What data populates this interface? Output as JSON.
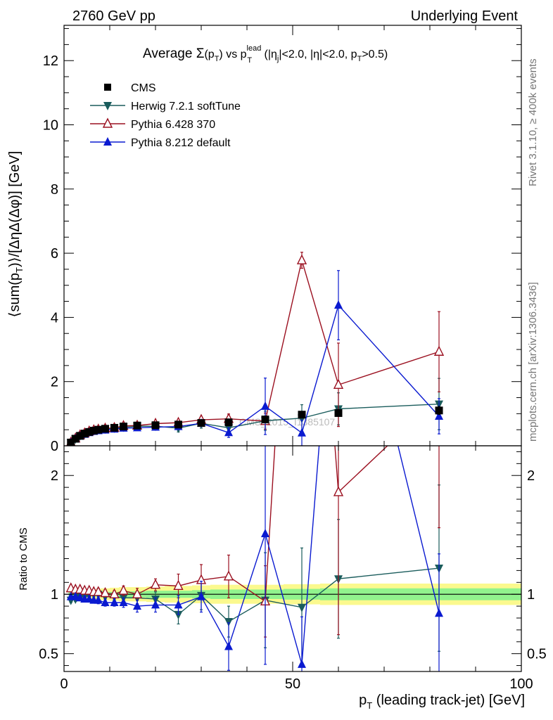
{
  "header": {
    "left": "2760 GeV pp",
    "right": "Underlying Event"
  },
  "side": {
    "rivet": "Rivet 3.1.10, ≥ 400k events",
    "mcplots": "mcplots.cern.ch [arXiv:1306.3436]"
  },
  "watermark": "CMS_2015_I1385107",
  "chart_data": {
    "type": "scatter",
    "title": {
      "prefix": "Average ",
      "sigma": "Σ",
      "paren_open": "(p",
      "paren_sub": "T",
      "paren_close": ")",
      "vs": " vs p",
      "sup": "lead",
      "sub": "T",
      "cuts_a": " (|η",
      "cuts_a_sub": "j",
      "cuts_b": "|<2.0, |η|<2.0, p",
      "cuts_b_sub": "T",
      "cuts_c": ">0.5)"
    },
    "ylabel_main": {
      "a": "⟨sum(p",
      "a_sub": "T",
      "b": ")⟩/[ΔηΔ(Δφ)] [GeV]"
    },
    "ylabel_ratio": "Ratio to CMS",
    "xlabel": {
      "a": "p",
      "a_sub": "T",
      "b": " (leading track-jet) [GeV]"
    },
    "xlim": [
      0,
      100
    ],
    "ylim_main": [
      0,
      13.1
    ],
    "ylim_ratio": [
      0.35,
      2.25
    ],
    "x_ticks": [
      "0",
      "50",
      "100"
    ],
    "x_tick_values": [
      0,
      50,
      100
    ],
    "y_ticks_main": [
      "0",
      "2",
      "4",
      "6",
      "8",
      "10",
      "12"
    ],
    "y_tick_values_main": [
      0,
      2,
      4,
      6,
      8,
      10,
      12
    ],
    "y_ticks_ratio": [
      "0.5",
      "1",
      "2"
    ],
    "y_tick_values_ratio": [
      0.5,
      1,
      2
    ],
    "legend": [
      {
        "name": "CMS",
        "color": "#000000",
        "marker": "square"
      },
      {
        "name": "Herwig 7.2.1 softTune",
        "color": "#1a5c5c",
        "marker": "triangle-down"
      },
      {
        "name": "Pythia 6.428 370",
        "color": "#9b1020",
        "marker": "triangle-open"
      },
      {
        "name": "Pythia 8.212 default",
        "color": "#0a1ad0",
        "marker": "triangle-up"
      }
    ],
    "data": {
      "x": [
        1.5,
        2.5,
        3.5,
        4.5,
        5.5,
        6.5,
        7.5,
        9,
        11,
        13,
        16,
        20,
        25,
        30,
        36,
        44,
        52,
        60,
        82
      ],
      "y": [
        0.1,
        0.22,
        0.31,
        0.38,
        0.43,
        0.47,
        0.5,
        0.53,
        0.56,
        0.6,
        0.63,
        0.64,
        0.66,
        0.71,
        0.73,
        0.82,
        0.97,
        1.02,
        1.1
      ],
      "err": [
        0.005,
        0.005,
        0.005,
        0.005,
        0.005,
        0.005,
        0.01,
        0.01,
        0.01,
        0.01,
        0.01,
        0.01,
        0.02,
        0.02,
        0.03,
        0.05,
        0.08,
        0.1,
        0.12
      ]
    },
    "series": [
      {
        "name": "Herwig 7.2.1 softTune",
        "color": "#1a5c5c",
        "marker": "triangle-down",
        "x": [
          1.5,
          2.5,
          3.5,
          4.5,
          5.5,
          6.5,
          7.5,
          9,
          11,
          13,
          16,
          20,
          25,
          30,
          36,
          44,
          52,
          60,
          82
        ],
        "y": [
          0.095,
          0.21,
          0.31,
          0.37,
          0.43,
          0.47,
          0.5,
          0.52,
          0.55,
          0.58,
          0.61,
          0.61,
          0.55,
          0.7,
          0.56,
          0.78,
          0.86,
          1.15,
          1.3
        ],
        "err_lo": [
          0.01,
          0.01,
          0.01,
          0.01,
          0.01,
          0.01,
          0.02,
          0.02,
          0.02,
          0.03,
          0.04,
          0.05,
          0.12,
          0.15,
          0.2,
          0.3,
          0.42,
          0.5,
          0.8
        ],
        "err_hi": [
          0.01,
          0.01,
          0.01,
          0.01,
          0.01,
          0.01,
          0.02,
          0.02,
          0.02,
          0.03,
          0.04,
          0.05,
          0.12,
          0.15,
          0.2,
          0.3,
          0.42,
          0.5,
          0.8
        ]
      },
      {
        "name": "Pythia 6.428 370",
        "color": "#9b1020",
        "marker": "triangle-open",
        "x": [
          1.5,
          2.5,
          3.5,
          4.5,
          5.5,
          6.5,
          7.5,
          9,
          11,
          13,
          16,
          20,
          25,
          30,
          36,
          44,
          52,
          60,
          82
        ],
        "y": [
          0.105,
          0.23,
          0.33,
          0.39,
          0.45,
          0.49,
          0.51,
          0.54,
          0.56,
          0.62,
          0.63,
          0.69,
          0.72,
          0.81,
          0.84,
          0.77,
          5.78,
          1.9,
          2.93
        ],
        "err_lo": [
          0.01,
          0.01,
          0.01,
          0.01,
          0.01,
          0.01,
          0.02,
          0.02,
          0.02,
          0.03,
          0.04,
          0.05,
          0.08,
          0.1,
          0.15,
          0.25,
          0.25,
          1.3,
          1.25
        ],
        "err_hi": [
          0.01,
          0.01,
          0.01,
          0.01,
          0.01,
          0.01,
          0.02,
          0.02,
          0.02,
          0.03,
          0.04,
          0.05,
          0.08,
          0.1,
          0.15,
          0.25,
          0.25,
          1.3,
          1.25
        ]
      },
      {
        "name": "Pythia 8.212 default",
        "color": "#0a1ad0",
        "marker": "triangle-up",
        "x": [
          1.5,
          2.5,
          3.5,
          4.5,
          5.5,
          6.5,
          7.5,
          9,
          11,
          13,
          16,
          20,
          25,
          30,
          36,
          44,
          52,
          60,
          82
        ],
        "y": [
          0.095,
          0.215,
          0.3,
          0.36,
          0.41,
          0.45,
          0.47,
          0.49,
          0.52,
          0.55,
          0.56,
          0.58,
          0.6,
          0.7,
          0.41,
          1.23,
          0.4,
          4.38,
          0.92
        ],
        "err_lo": [
          0.01,
          0.01,
          0.01,
          0.01,
          0.01,
          0.01,
          0.02,
          0.02,
          0.02,
          0.03,
          0.04,
          0.05,
          0.08,
          0.1,
          0.15,
          0.88,
          0.4,
          1.08,
          0.55
        ],
        "err_hi": [
          0.01,
          0.01,
          0.01,
          0.01,
          0.01,
          0.01,
          0.02,
          0.02,
          0.02,
          0.03,
          0.04,
          0.05,
          0.08,
          0.1,
          0.15,
          0.88,
          0.4,
          1.08,
          0.55
        ]
      }
    ],
    "ratio_band": {
      "x_lo": [
        1,
        2,
        3,
        4,
        5,
        6,
        7,
        8,
        10,
        12,
        14,
        18,
        22,
        28,
        32,
        40,
        48,
        56,
        64
      ],
      "x_hi": [
        2,
        3,
        4,
        5,
        6,
        7,
        8,
        10,
        12,
        14,
        18,
        22,
        28,
        32,
        40,
        48,
        56,
        64,
        100
      ],
      "inner": [
        0.015,
        0.015,
        0.015,
        0.015,
        0.015,
        0.015,
        0.02,
        0.02,
        0.02,
        0.025,
        0.025,
        0.03,
        0.03,
        0.035,
        0.04,
        0.04,
        0.045,
        0.05,
        0.05
      ],
      "outer": [
        0.02,
        0.02,
        0.025,
        0.03,
        0.035,
        0.04,
        0.045,
        0.05,
        0.055,
        0.06,
        0.06,
        0.065,
        0.07,
        0.075,
        0.08,
        0.08,
        0.085,
        0.09,
        0.09
      ]
    },
    "ratio_series": [
      {
        "name": "Herwig 7.2.1 softTune",
        "y": [
          0.95,
          0.96,
          0.98,
          0.98,
          0.99,
          1.0,
          1.0,
          0.98,
          0.98,
          0.97,
          0.97,
          0.96,
          0.83,
          0.99,
          0.77,
          0.95,
          0.89,
          1.13,
          1.22
        ],
        "err_lo": [
          0.02,
          0.02,
          0.02,
          0.02,
          0.02,
          0.02,
          0.03,
          0.03,
          0.03,
          0.04,
          0.05,
          0.06,
          0.08,
          0.12,
          0.13,
          0.4,
          0.5,
          0.5,
          0.7
        ],
        "err_hi": [
          0.02,
          0.02,
          0.02,
          0.02,
          0.02,
          0.02,
          0.03,
          0.03,
          0.03,
          0.04,
          0.05,
          0.06,
          0.08,
          0.12,
          0.13,
          0.4,
          0.5,
          0.5,
          0.7
        ]
      },
      {
        "name": "Pythia 6.428 370",
        "y": [
          1.05,
          1.04,
          1.04,
          1.03,
          1.03,
          1.02,
          1.02,
          1.01,
          1.0,
          1.03,
          1.0,
          1.08,
          1.07,
          1.12,
          1.15,
          0.94,
          5.9,
          1.86,
          2.66
        ],
        "err_lo": [
          0.02,
          0.02,
          0.02,
          0.02,
          0.02,
          0.02,
          0.03,
          0.03,
          0.03,
          0.04,
          0.05,
          0.05,
          0.1,
          0.13,
          0.18,
          0.3,
          0.4,
          1.2,
          1.1
        ],
        "err_hi": [
          0.02,
          0.02,
          0.02,
          0.02,
          0.02,
          0.02,
          0.03,
          0.03,
          0.03,
          0.04,
          0.05,
          0.05,
          0.1,
          0.13,
          0.18,
          0.3,
          0.4,
          1.2,
          1.1
        ]
      },
      {
        "name": "Pythia 8.212 default",
        "y": [
          0.98,
          0.98,
          0.97,
          0.96,
          0.96,
          0.95,
          0.95,
          0.93,
          0.93,
          0.93,
          0.9,
          0.91,
          0.91,
          0.98,
          0.56,
          1.51,
          0.41,
          4.3,
          0.84
        ],
        "err_lo": [
          0.02,
          0.02,
          0.02,
          0.02,
          0.02,
          0.02,
          0.03,
          0.03,
          0.03,
          0.04,
          0.05,
          0.06,
          0.08,
          0.13,
          0.2,
          1.1,
          0.4,
          1.0,
          0.5
        ],
        "err_hi": [
          0.02,
          0.02,
          0.02,
          0.02,
          0.02,
          0.02,
          0.03,
          0.03,
          0.03,
          0.04,
          0.05,
          0.06,
          0.08,
          0.13,
          0.2,
          1.1,
          0.4,
          1.0,
          0.5
        ]
      }
    ]
  }
}
